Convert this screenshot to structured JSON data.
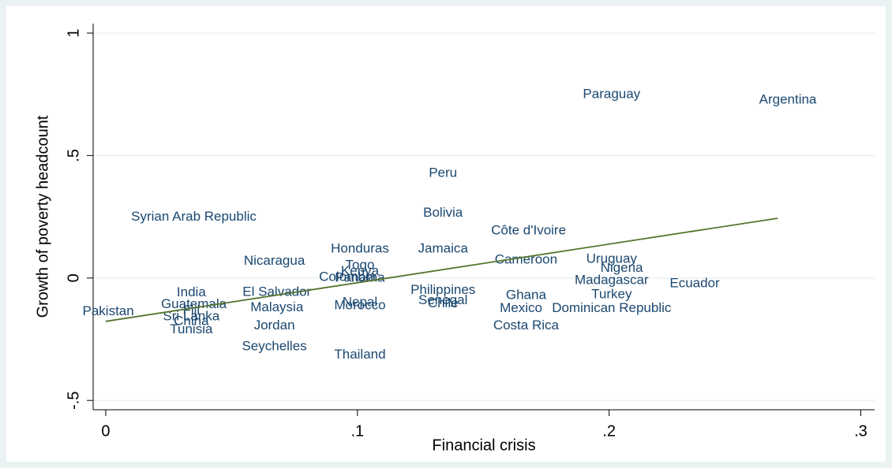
{
  "chart_data": {
    "type": "scatter",
    "xlabel": "Financial crisis",
    "ylabel": "Growth of poverty headcount",
    "xlim": [
      -0.005,
      0.3055
    ],
    "ylim": [
      -0.538,
      1.0386
    ],
    "xticks": [
      0,
      {
        "value": 0.1,
        "label": ".1"
      },
      {
        "value": 0.2,
        "label": ".2"
      },
      {
        "value": 0.3,
        "label": ".3"
      }
    ],
    "yticks": [
      {
        "value": -0.5,
        "label": "-.5"
      },
      0,
      {
        "value": 0.5,
        "label": ".5"
      },
      1
    ],
    "grid": true,
    "label_color": "#1a476f",
    "fit_color": "#55752f",
    "points": {
      "labels": [
        "Paraguay",
        "Argentina",
        "Peru",
        "Syrian Arab Republic",
        "Bolivia",
        "Côte d'Ivoire",
        "Honduras",
        "Jamaica",
        "Nicaragua",
        "Cameroon",
        "Uruguay",
        "Nigeria",
        "Togo",
        "Kenya",
        "Colombia",
        "Panama",
        "Madagascar",
        "Ecuador",
        "India",
        "El Salvador",
        "Philippines",
        "Ghana",
        "Turkey",
        "Guatemala",
        "Malaysia",
        "Nepal",
        "Morocco",
        "Senegal",
        "Chile",
        "Mexico",
        "Dominican Republic",
        "Pakistan",
        "Fiji",
        "Sri Lanka",
        "China",
        "Tunisia",
        "Jordan",
        "Costa Rica",
        "Seychelles",
        "Thailand"
      ],
      "x": [
        0.201,
        0.271,
        0.134,
        0.035,
        0.134,
        0.168,
        0.101,
        0.134,
        0.067,
        0.167,
        0.201,
        0.205,
        0.101,
        0.101,
        0.096,
        0.101,
        0.201,
        0.234,
        0.034,
        0.068,
        0.134,
        0.167,
        0.201,
        0.035,
        0.068,
        0.101,
        0.101,
        0.134,
        0.134,
        0.165,
        0.201,
        0.001,
        0.034,
        0.034,
        0.034,
        0.034,
        0.067,
        0.167,
        0.067,
        0.101
      ],
      "y": [
        0.749,
        0.727,
        0.428,
        0.248,
        0.264,
        0.193,
        0.119,
        0.119,
        0.068,
        0.074,
        0.077,
        0.039,
        0.051,
        0.026,
        0.003,
        0.0,
        -0.01,
        -0.023,
        -0.061,
        -0.058,
        -0.051,
        -0.071,
        -0.068,
        -0.109,
        -0.122,
        -0.1,
        -0.113,
        -0.093,
        -0.106,
        -0.125,
        -0.125,
        -0.138,
        -0.135,
        -0.158,
        -0.177,
        -0.212,
        -0.196,
        -0.196,
        -0.28,
        -0.315
      ]
    },
    "fit": {
      "x": [
        0,
        0.267
      ],
      "y": [
        -0.177,
        0.244
      ]
    }
  }
}
